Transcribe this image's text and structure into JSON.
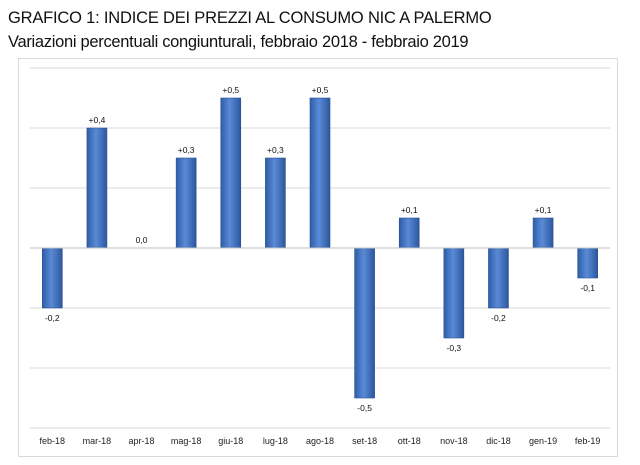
{
  "header": {
    "title": "GRAFICO 1: INDICE DEI PREZZI AL CONSUMO NIC A PALERMO",
    "subtitle": "Variazioni percentuali congiunturali, febbraio 2018 - febbraio 2019"
  },
  "chart_data": {
    "type": "bar",
    "title": "GRAFICO 1: INDICE DEI PREZZI AL CONSUMO NIC A PALERMO",
    "subtitle": "Variazioni percentuali congiunturali, febbraio 2018 - febbraio 2019",
    "categories": [
      "feb-18",
      "mar-18",
      "apr-18",
      "mag-18",
      "giu-18",
      "lug-18",
      "ago-18",
      "set-18",
      "ott-18",
      "nov-18",
      "dic-18",
      "gen-19",
      "feb-19"
    ],
    "values": [
      -0.2,
      0.4,
      0.0,
      0.3,
      0.5,
      0.3,
      0.5,
      -0.5,
      0.1,
      -0.3,
      -0.2,
      0.1,
      -0.1
    ],
    "data_labels": [
      "-0,2",
      "+0,4",
      "0,0",
      "+0,3",
      "+0,5",
      "+0,3",
      "+0,5",
      "-0,5",
      "+0,1",
      "-0,3",
      "-0,2",
      "+0,1",
      "-0,1"
    ],
    "ylim": [
      -0.6,
      0.6
    ],
    "gridlines": [
      -0.6,
      -0.4,
      -0.2,
      0.2,
      0.4,
      0.6
    ],
    "grid": true,
    "legend": "none",
    "bar_color": "#3f6fbf",
    "xlabel": "",
    "ylabel": ""
  }
}
